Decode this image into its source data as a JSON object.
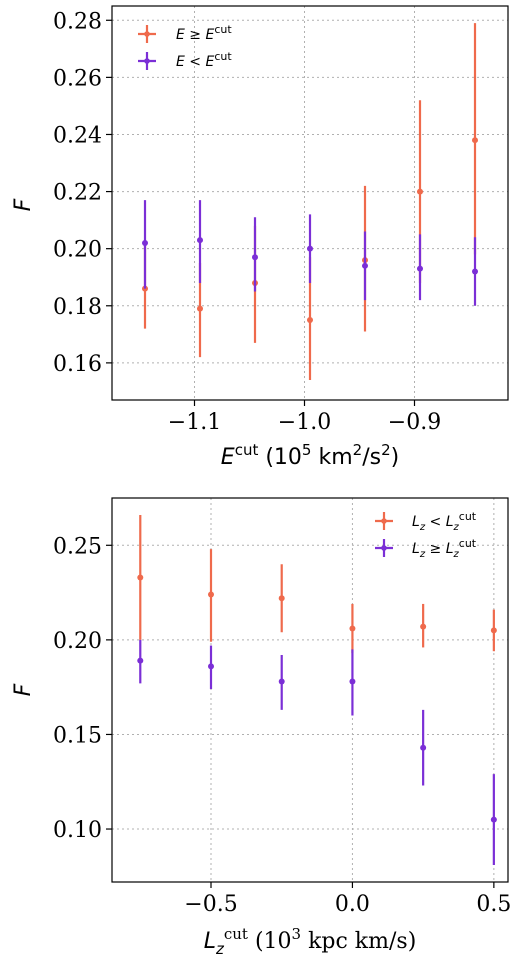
{
  "colors": {
    "orange": "#ef6a4c",
    "purple": "#7b2fd6"
  },
  "chart_data": [
    {
      "type": "scatter",
      "xlabel": "E^cut (10^5 km^2/s^2)",
      "ylabel": "F",
      "xlim": [
        -1.175,
        -0.815
      ],
      "ylim": [
        0.147,
        0.285
      ],
      "xticks": [
        -1.1,
        -1.0,
        -0.9
      ],
      "xtick_labels": [
        "−1.1",
        "−1.0",
        "−0.9"
      ],
      "yticks": [
        0.16,
        0.18,
        0.2,
        0.22,
        0.24,
        0.26,
        0.28
      ],
      "ytick_labels": [
        "0.16",
        "0.18",
        "0.20",
        "0.22",
        "0.24",
        "0.26",
        "0.28"
      ],
      "grid": true,
      "legend_position": "upper-left",
      "series": [
        {
          "name": "E ≥ E^cut",
          "color": "#ef6a4c",
          "x": [
            -1.145,
            -1.095,
            -1.045,
            -0.995,
            -0.945,
            -0.895,
            -0.845
          ],
          "y": [
            0.186,
            0.179,
            0.188,
            0.175,
            0.196,
            0.22,
            0.238
          ],
          "yerr_low": [
            0.172,
            0.162,
            0.167,
            0.154,
            0.171,
            0.188,
            0.198
          ],
          "yerr_high": [
            0.201,
            0.195,
            0.208,
            0.197,
            0.222,
            0.252,
            0.279
          ]
        },
        {
          "name": "E < E^cut",
          "color": "#7b2fd6",
          "x": [
            -1.145,
            -1.095,
            -1.045,
            -0.995,
            -0.945,
            -0.895,
            -0.845
          ],
          "y": [
            0.202,
            0.203,
            0.197,
            0.2,
            0.194,
            0.193,
            0.192
          ],
          "yerr_low": [
            0.186,
            0.188,
            0.185,
            0.188,
            0.182,
            0.182,
            0.18
          ],
          "yerr_high": [
            0.217,
            0.217,
            0.211,
            0.212,
            0.206,
            0.205,
            0.204
          ]
        }
      ]
    },
    {
      "type": "scatter",
      "xlabel": "L_z^cut (10^3 kpc km/s)",
      "ylabel": "F",
      "xlim": [
        -0.85,
        0.55
      ],
      "ylim": [
        0.072,
        0.275
      ],
      "xticks": [
        -0.5,
        0.0,
        0.5
      ],
      "xtick_labels": [
        "−0.5",
        "0.0",
        "0.5"
      ],
      "yticks": [
        0.1,
        0.15,
        0.2,
        0.25
      ],
      "ytick_labels": [
        "0.10",
        "0.15",
        "0.20",
        "0.25"
      ],
      "grid": true,
      "legend_position": "upper-right",
      "series": [
        {
          "name": "L_z < L_z^cut",
          "color": "#ef6a4c",
          "x": [
            -0.75,
            -0.5,
            -0.25,
            0.0,
            0.25,
            0.5
          ],
          "y": [
            0.233,
            0.224,
            0.222,
            0.206,
            0.207,
            0.205
          ],
          "yerr_low": [
            0.2,
            0.199,
            0.204,
            0.193,
            0.196,
            0.194
          ],
          "yerr_high": [
            0.266,
            0.248,
            0.24,
            0.219,
            0.219,
            0.216
          ]
        },
        {
          "name": "L_z ≥ L_z^cut",
          "color": "#7b2fd6",
          "x": [
            -0.75,
            -0.5,
            -0.25,
            0.0,
            0.25,
            0.5
          ],
          "y": [
            0.189,
            0.186,
            0.178,
            0.178,
            0.143,
            0.105
          ],
          "yerr_low": [
            0.177,
            0.174,
            0.163,
            0.16,
            0.123,
            0.081
          ],
          "yerr_high": [
            0.2,
            0.197,
            0.192,
            0.195,
            0.163,
            0.129
          ]
        }
      ]
    }
  ],
  "labels": {
    "top_ylabel": "F",
    "top_xlabel_main": "E",
    "top_xlabel_sup": "cut",
    "top_xlabel_rest1": " (10",
    "top_xlabel_exp1": "5",
    "top_xlabel_rest2": " km",
    "top_xlabel_exp2": "2",
    "top_xlabel_rest3": "/s",
    "top_xlabel_exp3": "2",
    "top_xlabel_rest4": ")",
    "bot_ylabel": "F",
    "bot_xlabel_main": "L",
    "bot_xlabel_sub": "z",
    "bot_xlabel_sup": "cut",
    "bot_xlabel_rest1": " (10",
    "bot_xlabel_exp1": "3",
    "bot_xlabel_rest2": " kpc km/s)",
    "leg_top_1_a": "E",
    "leg_top_1_b": " ≥ ",
    "leg_top_1_c": "E",
    "leg_top_1_sup": "cut",
    "leg_top_2_a": "E",
    "leg_top_2_b": " < ",
    "leg_top_2_c": "E",
    "leg_top_2_sup": "cut",
    "leg_bot_1_a": "L",
    "leg_bot_1_sub": "z",
    "leg_bot_1_b": " < ",
    "leg_bot_1_c": "L",
    "leg_bot_1_sub2": "z",
    "leg_bot_1_sup": "cut",
    "leg_bot_2_a": "L",
    "leg_bot_2_sub": "z",
    "leg_bot_2_b": " ≥ ",
    "leg_bot_2_c": "L",
    "leg_bot_2_sub2": "z",
    "leg_bot_2_sup": "cut"
  }
}
